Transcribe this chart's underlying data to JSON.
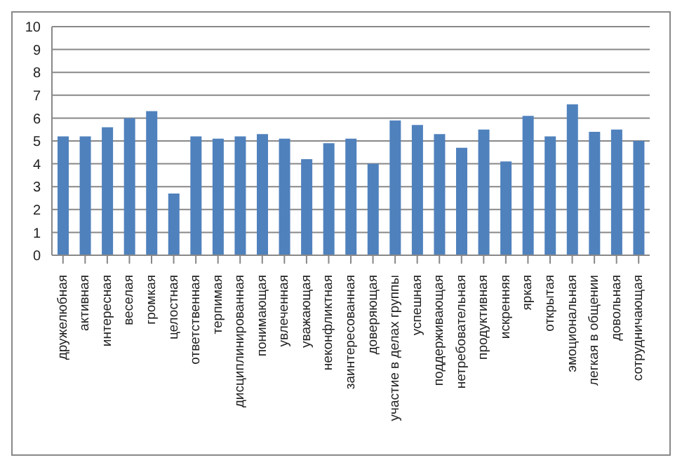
{
  "chart_data": {
    "type": "bar",
    "categories": [
      "дружелюбная",
      "активная",
      "интересная",
      "веселая",
      "громкая",
      "целостная",
      "ответственная",
      "терпимая",
      "дисциплинированная",
      "понимающая",
      "увлеченная",
      "уважающая",
      "неконфликтная",
      "заинтересованная",
      "доверяющая",
      "участие в делах группы",
      "успешная",
      "поддерживающая",
      "нетребовательная",
      "продуктивная",
      "искренняя",
      "яркая",
      "открытая",
      "эмоциональная",
      "легкая в общении",
      "довольная",
      "сотрудничающая"
    ],
    "values": [
      5.2,
      5.2,
      5.6,
      6.0,
      6.3,
      2.7,
      5.2,
      5.1,
      5.2,
      5.3,
      5.1,
      4.2,
      4.9,
      5.1,
      4.0,
      5.9,
      5.7,
      5.3,
      4.7,
      5.5,
      4.1,
      6.1,
      5.2,
      6.6,
      5.4,
      5.5,
      5.0
    ],
    "color": "#4f81bd",
    "ylim": [
      0,
      10
    ],
    "yticks": [
      0,
      1,
      2,
      3,
      4,
      5,
      6,
      7,
      8,
      9,
      10
    ],
    "grid": "y"
  }
}
